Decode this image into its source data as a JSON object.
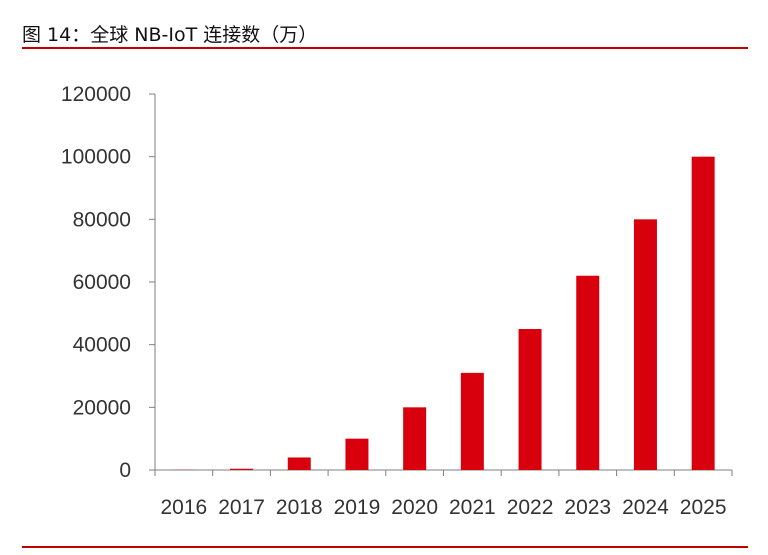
{
  "figure": {
    "title": "图 14：全球 NB-IoT 连接数（万）",
    "accent_color": "#c00000"
  },
  "chart_data": {
    "type": "bar",
    "title": "",
    "xlabel": "",
    "ylabel": "",
    "categories": [
      "2016",
      "2017",
      "2018",
      "2019",
      "2020",
      "2021",
      "2022",
      "2023",
      "2024",
      "2025"
    ],
    "values": [
      50,
      400,
      4000,
      10000,
      20000,
      31000,
      45000,
      62000,
      80000,
      100000
    ],
    "ylim": [
      0,
      120000
    ],
    "yticks": [
      "0",
      "20000",
      "40000",
      "60000",
      "80000",
      "100000",
      "120000"
    ],
    "bar_color": "#d9000d",
    "grid": false,
    "legend": "none"
  }
}
